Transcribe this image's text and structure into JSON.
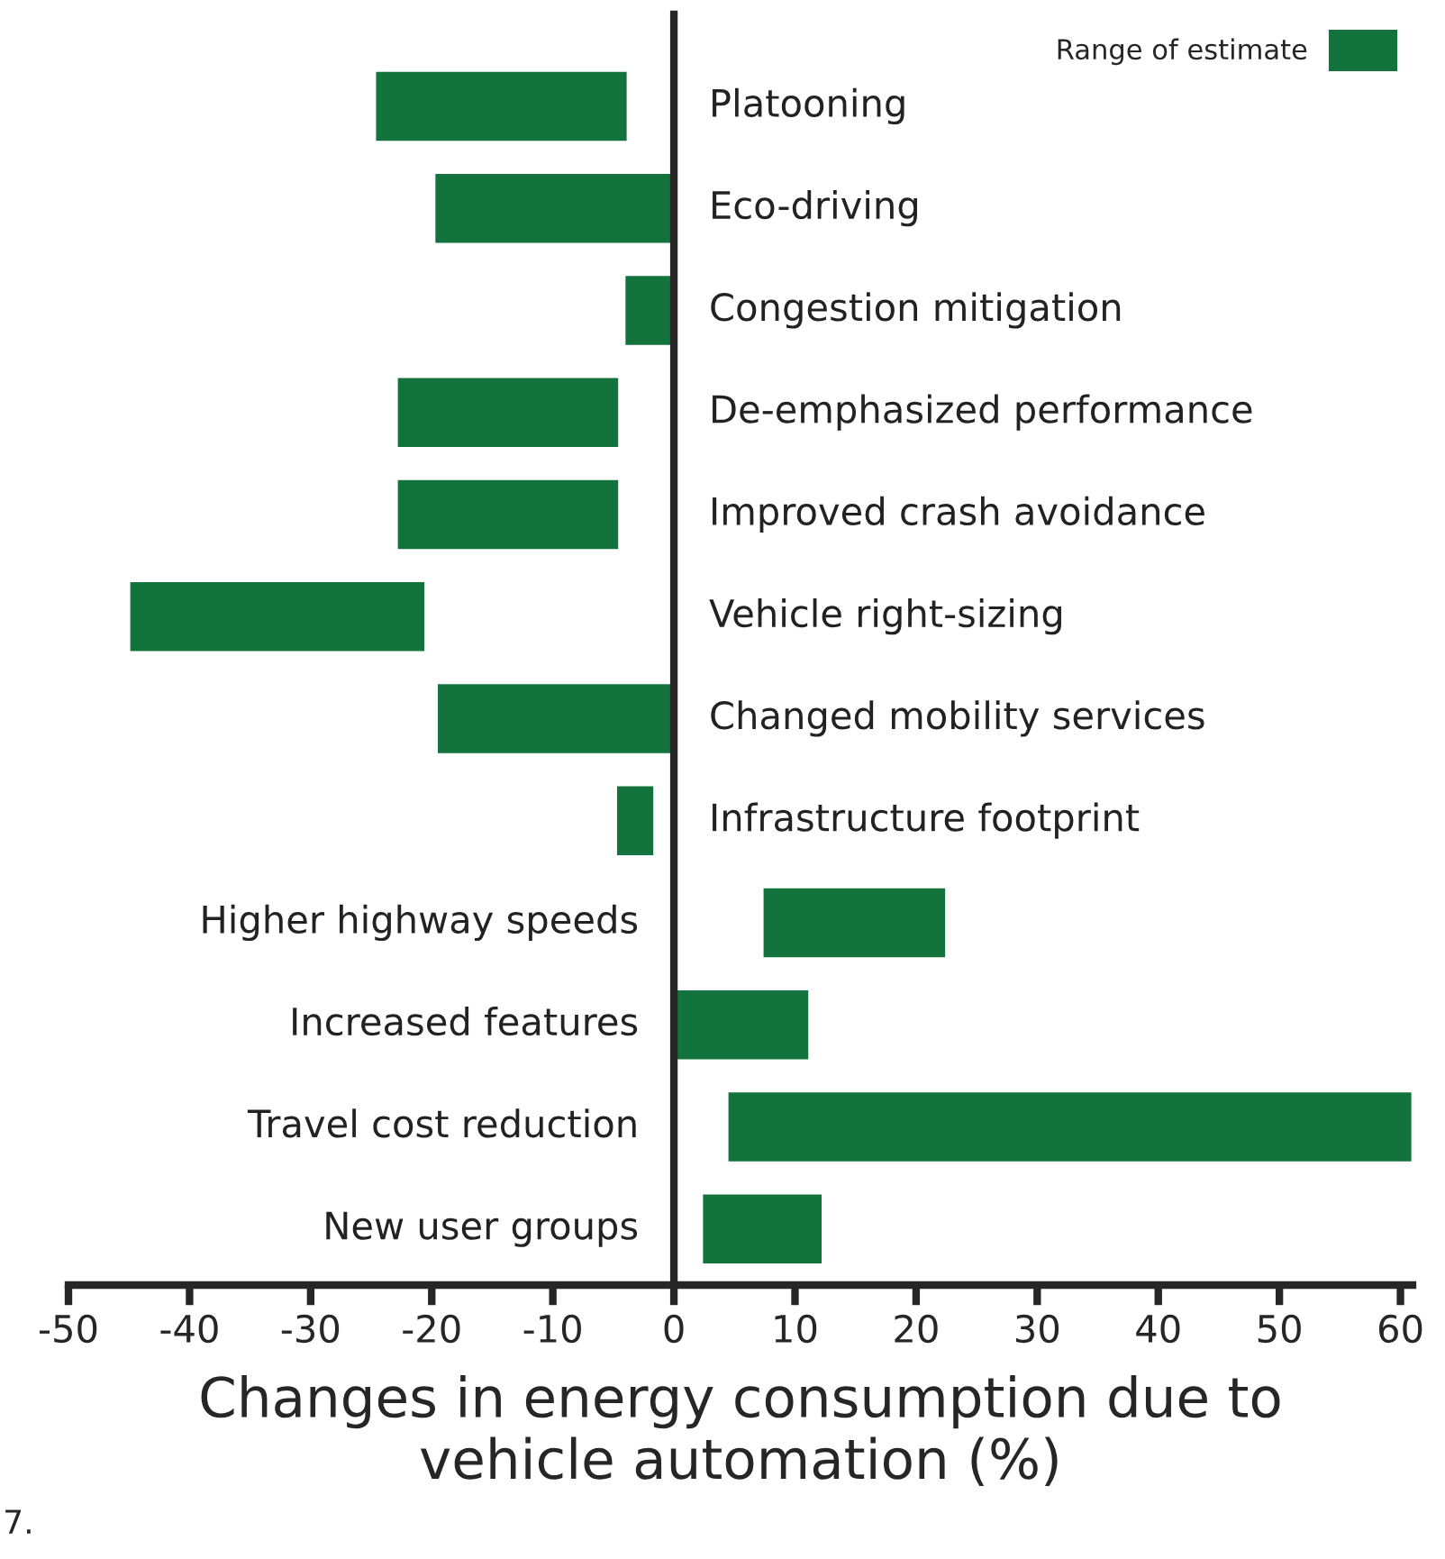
{
  "chart_data": {
    "type": "bar",
    "orientation": "horizontal",
    "categories": [
      "Platooning",
      "Eco-driving",
      "Congestion mitigation",
      "De-emphasized performance",
      "Improved crash avoidance",
      "Vehicle right-sizing",
      "Changed mobility services",
      "Infrastructure footprint",
      "Higher highway speeds",
      "Increased features",
      "Travel cost reduction",
      "New user groups"
    ],
    "series": [
      {
        "name": "Range of estimate",
        "color": "#12733c",
        "base": [
          -24.7,
          -19.8,
          -4.1,
          -22.9,
          -22.9,
          -45,
          -19.6,
          -4.8,
          7.3,
          0,
          4.4,
          2.3
        ],
        "values": [
          20.9,
          19.8,
          4.1,
          18.4,
          18.4,
          24.5,
          19.6,
          3.2,
          15.2,
          11.2,
          56.6,
          10
        ]
      }
    ],
    "xlabel": "Changes in energy consumption due to\nvehicle automation (%)",
    "xlim": [
      -50,
      61
    ],
    "xticks": [
      -50,
      -40,
      -30,
      -20,
      -10,
      0,
      10,
      20,
      30,
      40,
      50,
      60
    ],
    "grid": false,
    "legend": "top right",
    "annotations": [
      "7."
    ]
  }
}
